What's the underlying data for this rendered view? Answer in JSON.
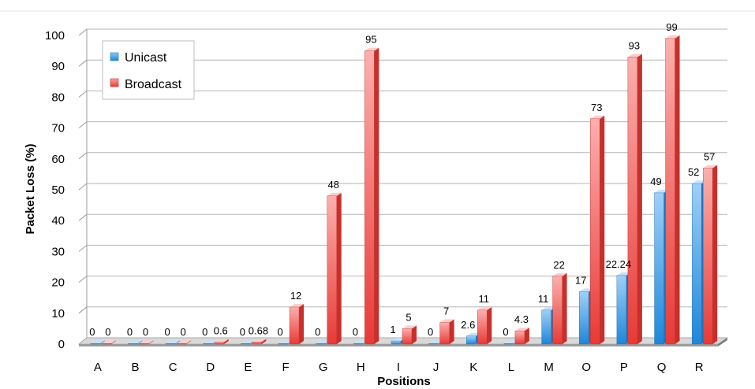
{
  "chart_data": {
    "type": "bar",
    "title": "",
    "xlabel": "Positions",
    "ylabel": "Packet Loss (%)",
    "ylim": [
      0,
      100
    ],
    "yticks": [
      "0",
      "10",
      "20",
      "30",
      "40",
      "50",
      "60",
      "70",
      "80",
      "90",
      "100"
    ],
    "categories": [
      "A",
      "B",
      "C",
      "D",
      "E",
      "F",
      "G",
      "H",
      "I",
      "J",
      "K",
      "L",
      "M",
      "O",
      "P",
      "Q",
      "R"
    ],
    "series": [
      {
        "name": "Unicast",
        "color": "#3d9be0",
        "values": [
          0,
          0,
          0,
          0,
          0,
          0,
          0,
          0,
          1,
          0,
          2.6,
          0,
          11,
          17,
          22.24,
          49,
          52
        ],
        "labels": [
          "0",
          "0",
          "0",
          "0",
          "0",
          "0",
          "0",
          "0",
          "1",
          "0",
          "2.6",
          "0",
          "11",
          "17",
          "22.24",
          "49",
          "52"
        ]
      },
      {
        "name": "Broadcast",
        "color": "#f0504c",
        "values": [
          0,
          0,
          0,
          0.6,
          0.68,
          12,
          48,
          95,
          5,
          7,
          11,
          4.3,
          22,
          73,
          93,
          99,
          57
        ],
        "labels": [
          "0",
          "0",
          "0",
          "0.6",
          "0.68",
          "12",
          "48",
          "95",
          "5",
          "7",
          "11",
          "4.3",
          "22",
          "73",
          "93",
          "99",
          "57"
        ]
      }
    ],
    "grid": true,
    "legend_position": "top-left",
    "style": "3d"
  }
}
